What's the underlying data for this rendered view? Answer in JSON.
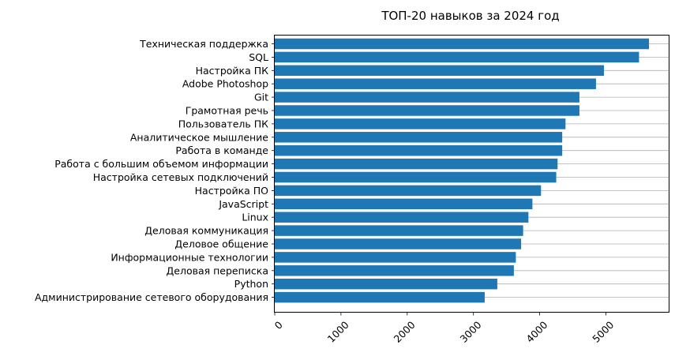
{
  "chart_data": {
    "type": "bar",
    "orientation": "horizontal",
    "title": "ТОП-20 навыков за 2024 год",
    "xlabel": "",
    "ylabel": "",
    "xlim": [
      0,
      5800
    ],
    "xticks": [
      0,
      1000,
      2000,
      3000,
      4000,
      5000
    ],
    "xtick_rotation": 45,
    "grid": "horizontal lines at each category",
    "bar_color": "#1f77b4",
    "grid_color": "#b0b0b0",
    "categories": [
      "Техническая поддержка",
      "SQL",
      "Настройка ПК",
      "Adobe Photoshop",
      "Git",
      "Грамотная речь",
      "Пользователь ПК",
      "Аналитическое мышление",
      "Работа в команде",
      "Работа с большим объемом информации",
      "Настройка сетевых подключений",
      "Настройка ПО",
      "JavaScript",
      "Linux",
      "Деловая коммуникация",
      "Деловое общение",
      "Информационные технологии",
      "Деловая переписка",
      "Python",
      "Администрирование сетевого оборудования"
    ],
    "values": [
      5650,
      5500,
      4970,
      4850,
      4600,
      4600,
      4390,
      4340,
      4340,
      4270,
      4250,
      4020,
      3890,
      3830,
      3750,
      3720,
      3640,
      3610,
      3360,
      3170
    ]
  }
}
